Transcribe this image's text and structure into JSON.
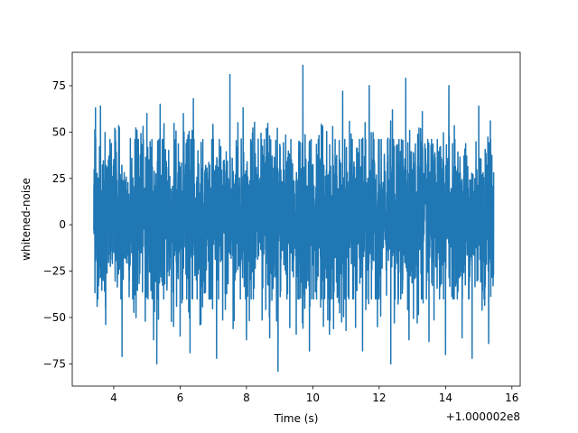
{
  "chart_data": {
    "type": "line",
    "title": "",
    "xlabel": "Time (s)",
    "ylabel": "whitened-noise",
    "x_offset_label": "+1.000002e8",
    "xlim": [
      2.75,
      16.25
    ],
    "ylim": [
      -87,
      93
    ],
    "x_ticks": [
      4,
      6,
      8,
      10,
      12,
      14,
      16
    ],
    "x_tick_labels": [
      "4",
      "6",
      "8",
      "10",
      "12",
      "14",
      "16"
    ],
    "y_ticks": [
      -75,
      -50,
      -25,
      0,
      25,
      50,
      75
    ],
    "y_tick_labels": [
      "−75",
      "−50",
      "−25",
      "0",
      "25",
      "50",
      "75"
    ],
    "grid": false,
    "series": [
      {
        "color": "#1f77b4",
        "x_start": 3.4,
        "x_end": 15.45,
        "core_range": [
          -32,
          38
        ],
        "peaks": [
          [
            3.45,
            63
          ],
          [
            3.6,
            64
          ],
          [
            4.05,
            51
          ],
          [
            4.15,
            73
          ],
          [
            4.7,
            51
          ],
          [
            5.0,
            60
          ],
          [
            5.4,
            65
          ],
          [
            6.1,
            60
          ],
          [
            6.4,
            68
          ],
          [
            7.1,
            60
          ],
          [
            7.5,
            81
          ],
          [
            7.9,
            63
          ],
          [
            8.6,
            52
          ],
          [
            8.95,
            74
          ],
          [
            9.7,
            86
          ],
          [
            9.9,
            73
          ],
          [
            10.6,
            53
          ],
          [
            10.9,
            72
          ],
          [
            11.5,
            64
          ],
          [
            11.7,
            75
          ],
          [
            12.4,
            62
          ],
          [
            12.8,
            79
          ],
          [
            13.3,
            61
          ],
          [
            13.5,
            78
          ],
          [
            14.1,
            75
          ],
          [
            14.5,
            59
          ],
          [
            15.0,
            64
          ],
          [
            15.35,
            56
          ]
        ],
        "troughs": [
          [
            3.5,
            -44
          ],
          [
            3.75,
            -45
          ],
          [
            4.25,
            -71
          ],
          [
            4.5,
            -58
          ],
          [
            4.95,
            -52
          ],
          [
            5.2,
            -62
          ],
          [
            5.3,
            -75
          ],
          [
            6.0,
            -60
          ],
          [
            6.3,
            -69
          ],
          [
            6.6,
            -54
          ],
          [
            7.1,
            -72
          ],
          [
            7.6,
            -56
          ],
          [
            8.0,
            -62
          ],
          [
            8.7,
            -61
          ],
          [
            8.95,
            -79
          ],
          [
            9.5,
            -59
          ],
          [
            9.9,
            -68
          ],
          [
            10.5,
            -59
          ],
          [
            11.0,
            -57
          ],
          [
            11.5,
            -68
          ],
          [
            12.0,
            -65
          ],
          [
            12.35,
            -75
          ],
          [
            12.9,
            -62
          ],
          [
            13.5,
            -63
          ],
          [
            14.0,
            -70
          ],
          [
            14.5,
            -61
          ],
          [
            14.8,
            -72
          ],
          [
            15.3,
            -64
          ]
        ]
      }
    ]
  }
}
